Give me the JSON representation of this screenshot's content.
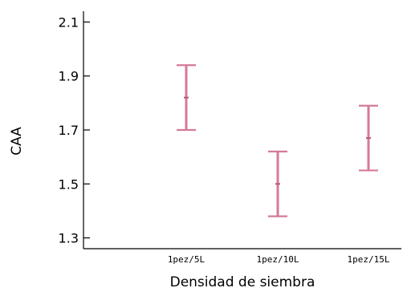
{
  "chart_data": {
    "type": "scatter",
    "subtype": "error-bars",
    "xlabel": "Densidad de siembra",
    "ylabel": "CAA",
    "categories": [
      "1pez/5L",
      "1pez/10L",
      "1pez/15L"
    ],
    "series": [
      {
        "means": [
          1.82,
          1.5,
          1.67
        ],
        "lower": [
          1.7,
          1.38,
          1.55
        ],
        "upper": [
          1.94,
          1.62,
          1.79
        ]
      }
    ],
    "ylim": [
      1.26,
      2.14
    ],
    "yticks": [
      1.3,
      1.5,
      1.7,
      1.9,
      2.1
    ],
    "ytick_labels": [
      "1.3",
      "1.5",
      "1.7",
      "1.9",
      "2.1"
    ],
    "grid": false,
    "color": "#d47a9a",
    "axis_color": "#000000"
  }
}
